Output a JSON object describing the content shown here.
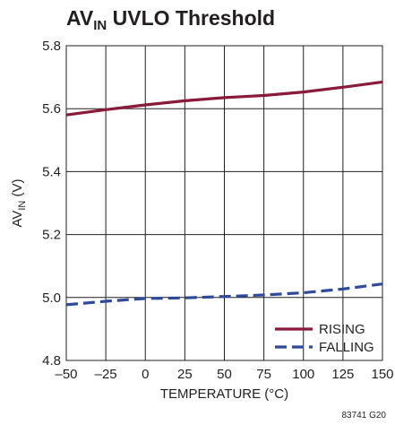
{
  "chart_data": {
    "type": "line",
    "title": {
      "main": "AV",
      "sub": "IN",
      "rest": " UVLO Threshold"
    },
    "xlabel": "TEMPERATURE (°C)",
    "ylabel": {
      "main": "AV",
      "sub": "IN",
      "rest": " (V)"
    },
    "xlim": [
      -50,
      150
    ],
    "ylim": [
      4.8,
      5.8
    ],
    "x_ticks": [
      -50,
      -25,
      0,
      25,
      50,
      75,
      100,
      125,
      150
    ],
    "x_tick_labels": [
      "–50",
      "–25",
      "0",
      "25",
      "50",
      "75",
      "100",
      "125",
      "150"
    ],
    "y_ticks": [
      4.8,
      5.0,
      5.2,
      5.4,
      5.6,
      5.8
    ],
    "y_tick_labels": [
      "4.8",
      "5.0",
      "5.2",
      "5.4",
      "5.6",
      "5.8"
    ],
    "grid": true,
    "legend_position": "bottom-right",
    "series": [
      {
        "name": "RISING",
        "color": "#8b1a3a",
        "dash": "solid",
        "x": [
          -50,
          -25,
          0,
          25,
          50,
          75,
          100,
          125,
          150
        ],
        "y": [
          5.58,
          5.597,
          5.612,
          5.625,
          5.635,
          5.642,
          5.653,
          5.668,
          5.685
        ]
      },
      {
        "name": "FALLING",
        "color": "#2e4a9a",
        "dash": "dashed",
        "x": [
          -50,
          -25,
          0,
          25,
          50,
          75,
          100,
          125,
          150
        ],
        "y": [
          4.977,
          4.988,
          4.997,
          4.999,
          5.003,
          5.008,
          5.015,
          5.027,
          5.043
        ]
      }
    ]
  },
  "figure_code": "83741 G20"
}
